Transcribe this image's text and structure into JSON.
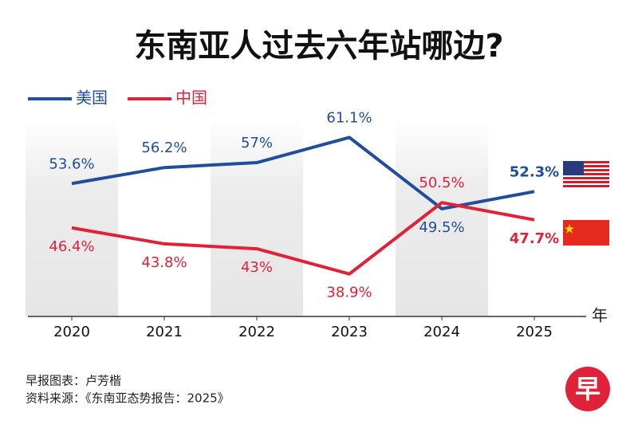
{
  "chart_data": {
    "type": "line",
    "title": "东南亚人过去六年站哪边?",
    "categories": [
      "2020",
      "2021",
      "2022",
      "2023",
      "2024",
      "2025"
    ],
    "x_label": "年",
    "series": [
      {
        "name": "美国",
        "color": "#1f4e9c",
        "values": [
          53.6,
          56.2,
          57,
          61.1,
          49.5,
          52.3
        ],
        "value_labels": [
          "53.6%",
          "56.2%",
          "57%",
          "61.1%",
          "49.5%",
          "52.3%"
        ]
      },
      {
        "name": "中国",
        "color": "#e0213a",
        "values": [
          46.4,
          43.8,
          43,
          38.9,
          50.5,
          47.7
        ],
        "value_labels": [
          "46.4%",
          "43.8%",
          "43%",
          "38.9%",
          "50.5%",
          "47.7%"
        ]
      }
    ],
    "ylim": [
      32,
      64
    ],
    "footer": [
      "早报图表：卢芳楷",
      "资料来源：《东南亚态势报告：2025》"
    ],
    "logo": "早"
  }
}
